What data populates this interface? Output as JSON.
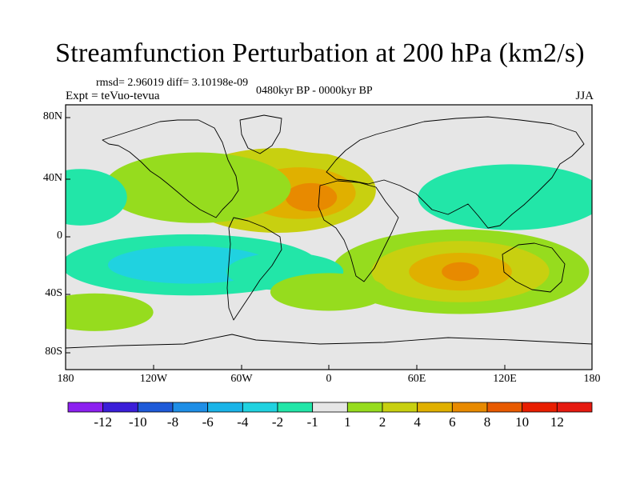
{
  "title": "Streamfunction Perturbation at 200 hPa (km2/s)",
  "stats_text": "rmsd= 2.96019 diff= 3.10198e-09",
  "expt_text": "Expt = teVuo-tevua",
  "period_text": "0480kyr BP - 0000kyr BP",
  "season_text": "JJA",
  "axes": {
    "y_ticks": [
      "80N",
      "40N",
      "0",
      "40S",
      "80S"
    ],
    "x_ticks": [
      "180",
      "120W",
      "60W",
      "0",
      "60E",
      "120E",
      "180"
    ]
  },
  "colorbar": {
    "labels": [
      "-12",
      "-10",
      "-8",
      "-6",
      "-4",
      "-2",
      "-1",
      "1",
      "2",
      "4",
      "6",
      "8",
      "10",
      "12"
    ],
    "colors": [
      "#8c20f0",
      "#3b1ed8",
      "#1e5ad8",
      "#1e8ee6",
      "#1ab4e8",
      "#20d2e0",
      "#22e6a8",
      "#e6e6e6",
      "#96dc1e",
      "#c8d010",
      "#e0b000",
      "#e88a00",
      "#e85a00",
      "#e81e00",
      "#e61a10"
    ]
  },
  "map_fields": {
    "background": "#e6e6e6",
    "blobs": [
      {
        "lon": -35,
        "lat": 35,
        "rx": 42,
        "ry": 18,
        "level": 2
      },
      {
        "lon": -20,
        "lat": 33,
        "rx": 24,
        "ry": 11,
        "level": 3
      },
      {
        "lon": -12,
        "lat": 30,
        "rx": 11,
        "ry": 6,
        "level": 4
      },
      {
        "lon": -90,
        "lat": 37,
        "rx": 40,
        "ry": 15,
        "level": 1
      },
      {
        "lon": 90,
        "lat": -25,
        "rx": 55,
        "ry": 18,
        "level": 1
      },
      {
        "lon": 90,
        "lat": -25,
        "rx": 38,
        "ry": 13,
        "level": 2
      },
      {
        "lon": 90,
        "lat": -25,
        "rx": 22,
        "ry": 8,
        "level": 3
      },
      {
        "lon": 90,
        "lat": -25,
        "rx": 8,
        "ry": 4,
        "level": 4
      },
      {
        "lon": -95,
        "lat": -20,
        "rx": 55,
        "ry": 13,
        "level": -1
      },
      {
        "lon": -95,
        "lat": -20,
        "rx": 35,
        "ry": 8,
        "level": -2
      },
      {
        "lon": -30,
        "lat": -25,
        "rx": 25,
        "ry": 8,
        "level": -1
      },
      {
        "lon": 125,
        "lat": 30,
        "rx": 40,
        "ry": 14,
        "level": -1
      },
      {
        "lon": -170,
        "lat": 30,
        "rx": 20,
        "ry": 12,
        "level": -1
      },
      {
        "lon": -40,
        "lat": -62,
        "rx": 50,
        "ry": 8,
        "level": 0
      },
      {
        "lon": 20,
        "lat": 75,
        "rx": 40,
        "ry": 8,
        "level": 0
      },
      {
        "lon": 165,
        "lat": 75,
        "rx": 25,
        "ry": 8,
        "level": 0
      },
      {
        "lon": -160,
        "lat": -55,
        "rx": 25,
        "ry": 8,
        "level": 1
      },
      {
        "lon": 0,
        "lat": -40,
        "rx": 25,
        "ry": 8,
        "level": 1
      }
    ]
  }
}
